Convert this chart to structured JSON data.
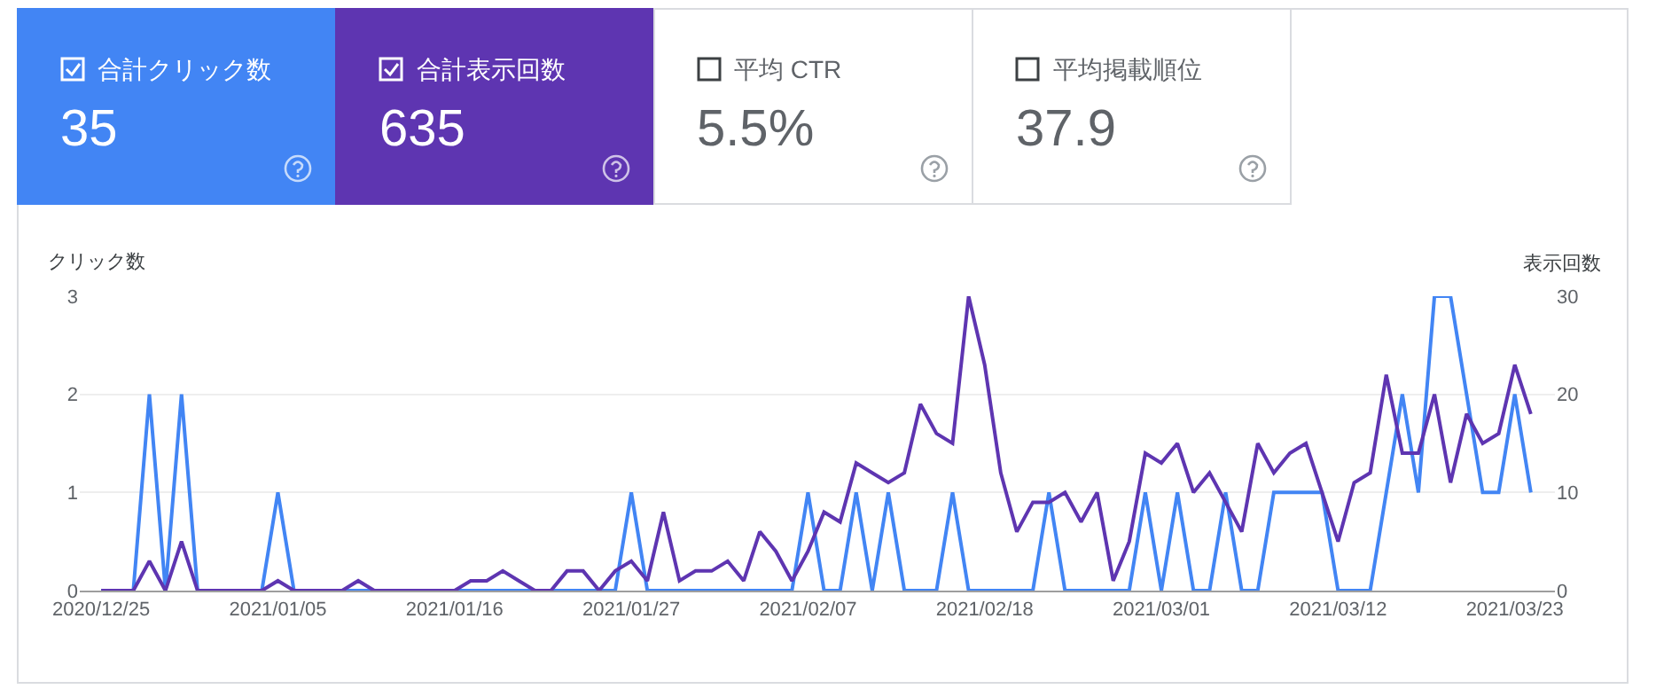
{
  "chart_data": [
    {
      "type": "other",
      "annotations": [
        "合計クリック数",
        "35",
        "合計表示回数",
        "635",
        "平均 CTR",
        "5.5%",
        "平均掲載順位",
        "37.9"
      ]
    },
    {
      "type": "line",
      "ylabel": "クリック数",
      "y2label": "表示回数",
      "x": [
        "2020-12-25",
        "2020-12-26",
        "2020-12-27",
        "2020-12-28",
        "2020-12-29",
        "2020-12-30",
        "2020-12-31",
        "2021-01-01",
        "2021-01-02",
        "2021-01-03",
        "2021-01-04",
        "2021-01-05",
        "2021-01-06",
        "2021-01-07",
        "2021-01-08",
        "2021-01-09",
        "2021-01-10",
        "2021-01-11",
        "2021-01-12",
        "2021-01-13",
        "2021-01-14",
        "2021-01-15",
        "2021-01-16",
        "2021-01-17",
        "2021-01-18",
        "2021-01-19",
        "2021-01-20",
        "2021-01-21",
        "2021-01-22",
        "2021-01-23",
        "2021-01-24",
        "2021-01-25",
        "2021-01-26",
        "2021-01-27",
        "2021-01-28",
        "2021-01-29",
        "2021-01-30",
        "2021-01-31",
        "2021-02-01",
        "2021-02-02",
        "2021-02-03",
        "2021-02-04",
        "2021-02-05",
        "2021-02-06",
        "2021-02-07",
        "2021-02-08",
        "2021-02-09",
        "2021-02-10",
        "2021-02-11",
        "2021-02-12",
        "2021-02-13",
        "2021-02-14",
        "2021-02-15",
        "2021-02-16",
        "2021-02-17",
        "2021-02-18",
        "2021-02-19",
        "2021-02-20",
        "2021-02-21",
        "2021-02-22",
        "2021-02-23",
        "2021-02-24",
        "2021-02-25",
        "2021-02-26",
        "2021-02-27",
        "2021-02-28",
        "2021-03-01",
        "2021-03-02",
        "2021-03-03",
        "2021-03-04",
        "2021-03-05",
        "2021-03-06",
        "2021-03-07",
        "2021-03-08",
        "2021-03-09",
        "2021-03-10",
        "2021-03-11",
        "2021-03-12",
        "2021-03-13",
        "2021-03-14",
        "2021-03-15",
        "2021-03-16",
        "2021-03-17",
        "2021-03-18",
        "2021-03-19",
        "2021-03-20",
        "2021-03-21",
        "2021-03-22",
        "2021-03-23",
        "2021-03-24"
      ],
      "series": [
        {
          "color": "#5e35b1",
          "axis": "y2",
          "values": [
            0,
            0,
            0,
            3,
            0,
            5,
            0,
            0,
            0,
            0,
            0,
            1,
            0,
            0,
            0,
            0,
            1,
            0,
            0,
            0,
            0,
            0,
            0,
            1,
            1,
            2,
            1,
            0,
            0,
            2,
            2,
            0,
            2,
            3,
            1,
            8,
            1,
            2,
            2,
            3,
            1,
            6,
            4,
            1,
            4,
            8,
            7,
            13,
            12,
            11,
            12,
            19,
            16,
            15,
            30,
            23,
            12,
            6,
            9,
            9,
            10,
            7,
            10,
            1,
            5,
            14,
            13,
            15,
            10,
            12,
            9,
            6,
            15,
            12,
            14,
            15,
            10,
            5,
            11,
            12,
            22,
            14,
            14,
            20,
            11,
            18,
            15,
            16,
            23,
            18
          ]
        },
        {
          "color": "#4285f4",
          "values": [
            0,
            0,
            0,
            2,
            0,
            2,
            0,
            0,
            0,
            0,
            0,
            1,
            0,
            0,
            0,
            0,
            0,
            0,
            0,
            0,
            0,
            0,
            0,
            0,
            0,
            0,
            0,
            0,
            0,
            0,
            0,
            0,
            0,
            1,
            0,
            0,
            0,
            0,
            0,
            0,
            0,
            0,
            0,
            0,
            1,
            0,
            0,
            1,
            0,
            1,
            0,
            0,
            0,
            1,
            0,
            0,
            0,
            0,
            0,
            1,
            0,
            0,
            0,
            0,
            0,
            1,
            0,
            1,
            0,
            0,
            1,
            0,
            0,
            1,
            1,
            1,
            1,
            0,
            0,
            0,
            1,
            2,
            1,
            3,
            3,
            2,
            1,
            1,
            2,
            1
          ]
        }
      ],
      "xlim": [
        "2020-12-23T16:00",
        "2021-03-25T12:00"
      ],
      "xticks": [
        {
          "value": "2020-12-25",
          "label": "2020/12/25"
        },
        {
          "value": "2021-01-05",
          "label": "2021/01/05"
        },
        {
          "value": "2021-01-16",
          "label": "2021/01/16"
        },
        {
          "value": "2021-01-27",
          "label": "2021/01/27"
        },
        {
          "value": "2021-02-07",
          "label": "2021/02/07"
        },
        {
          "value": "2021-02-18",
          "label": "2021/02/18"
        },
        {
          "value": "2021-03-01",
          "label": "2021/03/01"
        },
        {
          "value": "2021-03-12",
          "label": "2021/03/12"
        },
        {
          "value": "2021-03-23",
          "label": "2021/03/23"
        }
      ],
      "ylim": [
        0,
        3
      ],
      "yticks": [
        0,
        1,
        2,
        3
      ],
      "y2lim": [
        0,
        30
      ],
      "y2ticks": [
        0,
        10,
        20,
        30
      ],
      "grid": "y"
    }
  ]
}
